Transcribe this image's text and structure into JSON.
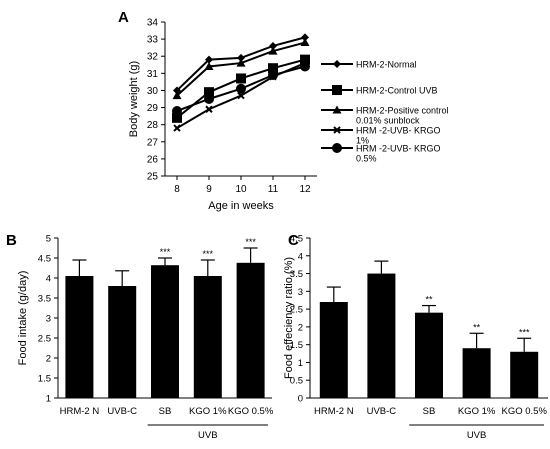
{
  "chart_data": [
    {
      "panel": "A",
      "type": "line",
      "xlabel": "Age in weeks",
      "ylabel": "Body weight (g)",
      "x": [
        8,
        9,
        10,
        11,
        12
      ],
      "xticks": [
        "8",
        "9",
        "10",
        "11",
        "12"
      ],
      "ylim": [
        25,
        34
      ],
      "yticks": [
        "25",
        "26",
        "27",
        "28",
        "29",
        "30",
        "31",
        "32",
        "33",
        "34"
      ],
      "grid": false,
      "legend_position": "right",
      "series": [
        {
          "name": "HRM-2-Normal",
          "marker": "diamond",
          "values": [
            30.0,
            31.8,
            31.9,
            32.6,
            33.1
          ]
        },
        {
          "name": "HRM-2-Control UVB",
          "marker": "square",
          "values": [
            28.4,
            29.9,
            30.7,
            31.3,
            31.8
          ]
        },
        {
          "name": "HRM-2-Positive control 0.01% sunblock",
          "name_lines": [
            "HRM-2-Positive control",
            "0.01% sunblock"
          ],
          "marker": "triangle",
          "values": [
            29.7,
            31.4,
            31.6,
            32.3,
            32.8
          ]
        },
        {
          "name": "HRM -2-UVB- KRGO 1%",
          "name_lines": [
            "HRM -2-UVB- KRGO",
            "1%"
          ],
          "marker": "x",
          "values": [
            27.8,
            28.9,
            29.7,
            30.8,
            31.6
          ]
        },
        {
          "name": "HRM -2-UVB- KRGO 0.5%",
          "name_lines": [
            "HRM -2-UVB- KRGO",
            "0.5%"
          ],
          "marker": "circle",
          "values": [
            28.8,
            29.5,
            30.1,
            30.9,
            31.4
          ]
        }
      ]
    },
    {
      "panel": "B",
      "type": "bar",
      "ylabel": "Food intake (g/day)",
      "categories": [
        "HRM-2 N",
        "UVB-C",
        "SB",
        "KGO 1%",
        "KGO 0.5%"
      ],
      "values": [
        4.05,
        3.8,
        4.32,
        4.05,
        4.38
      ],
      "errors": [
        0.4,
        0.38,
        0.18,
        0.4,
        0.37
      ],
      "significance": [
        "",
        "",
        "***",
        "***",
        "***"
      ],
      "ylim": [
        1,
        5
      ],
      "yticks": [
        "1",
        "1.5",
        "2",
        "2.5",
        "3",
        "3.5",
        "4",
        "4.5",
        "5"
      ],
      "group_label": "UVB",
      "group_span": [
        2,
        4
      ],
      "grid": false
    },
    {
      "panel": "C",
      "type": "bar",
      "ylabel": "Food effeciency ratio (%)",
      "categories": [
        "HRM-2 N",
        "UVB-C",
        "SB",
        "KGO 1%",
        "KGO 0.5%"
      ],
      "values": [
        2.7,
        3.5,
        2.4,
        1.4,
        1.3
      ],
      "errors": [
        0.42,
        0.35,
        0.2,
        0.42,
        0.38
      ],
      "significance": [
        "",
        "",
        "**",
        "**",
        "***"
      ],
      "ylim": [
        0,
        4.5
      ],
      "yticks": [
        "0",
        "0.5",
        "1",
        "1.5",
        "2",
        "2.5",
        "3",
        "3.5",
        "4",
        "4.5"
      ],
      "group_label": "UVB",
      "group_span": [
        2,
        4
      ],
      "grid": false
    }
  ]
}
